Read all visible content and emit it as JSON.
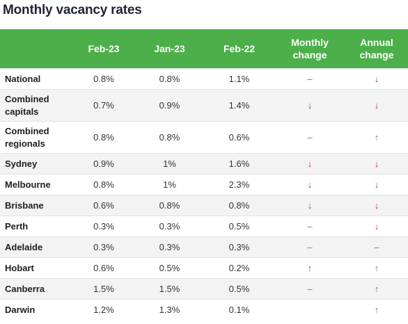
{
  "title": "Monthly vacancy rates",
  "headers": [
    "",
    "Feb-23",
    "Jan-23",
    "Feb-22",
    "Monthly change",
    "Annual change"
  ],
  "rows": [
    {
      "region": "National",
      "feb23": "0.8%",
      "jan23": "0.8%",
      "feb22": "1.1%",
      "monthly": "–",
      "annual": "↓"
    },
    {
      "region": "Combined capitals",
      "feb23": "0.7%",
      "jan23": "0.9%",
      "feb22": "1.4%",
      "monthly": "↓",
      "annual": "↓"
    },
    {
      "region": "Combined regionals",
      "feb23": "0.8%",
      "jan23": "0.8%",
      "feb22": "0.6%",
      "monthly": "–",
      "annual": "↑"
    },
    {
      "region": "Sydney",
      "feb23": "0.9%",
      "jan23": "1%",
      "feb22": "1.6%",
      "monthly": "↓",
      "annual": "↓"
    },
    {
      "region": "Melbourne",
      "feb23": "0.8%",
      "jan23": "1%",
      "feb22": "2.3%",
      "monthly": "↓",
      "annual": "↓"
    },
    {
      "region": "Brisbane",
      "feb23": "0.6%",
      "jan23": "0.8%",
      "feb22": "0.8%",
      "monthly": "↓",
      "annual": "↓"
    },
    {
      "region": "Perth",
      "feb23": "0.3%",
      "jan23": "0.3%",
      "feb22": "0.5%",
      "monthly": "–",
      "annual": "↓"
    },
    {
      "region": "Adelaide",
      "feb23": "0.3%",
      "jan23": "0.3%",
      "feb22": "0.3%",
      "monthly": "–",
      "annual": "–"
    },
    {
      "region": "Hobart",
      "feb23": "0.6%",
      "jan23": "0.5%",
      "feb22": "0.2%",
      "monthly": "↑",
      "annual": "↑"
    },
    {
      "region": "Canberra",
      "feb23": "1.5%",
      "jan23": "1.5%",
      "feb22": "0.5%",
      "monthly": "–",
      "annual": "↑"
    },
    {
      "region": "Darwin",
      "feb23": "1.2%",
      "jan23": "1.3%",
      "feb22": "0.1%",
      "monthly": "",
      "annual": "↑"
    }
  ],
  "colors": {
    "header_bg": "#4caf4a",
    "down_arrow": "#c0392b",
    "neutral": "#777777"
  }
}
